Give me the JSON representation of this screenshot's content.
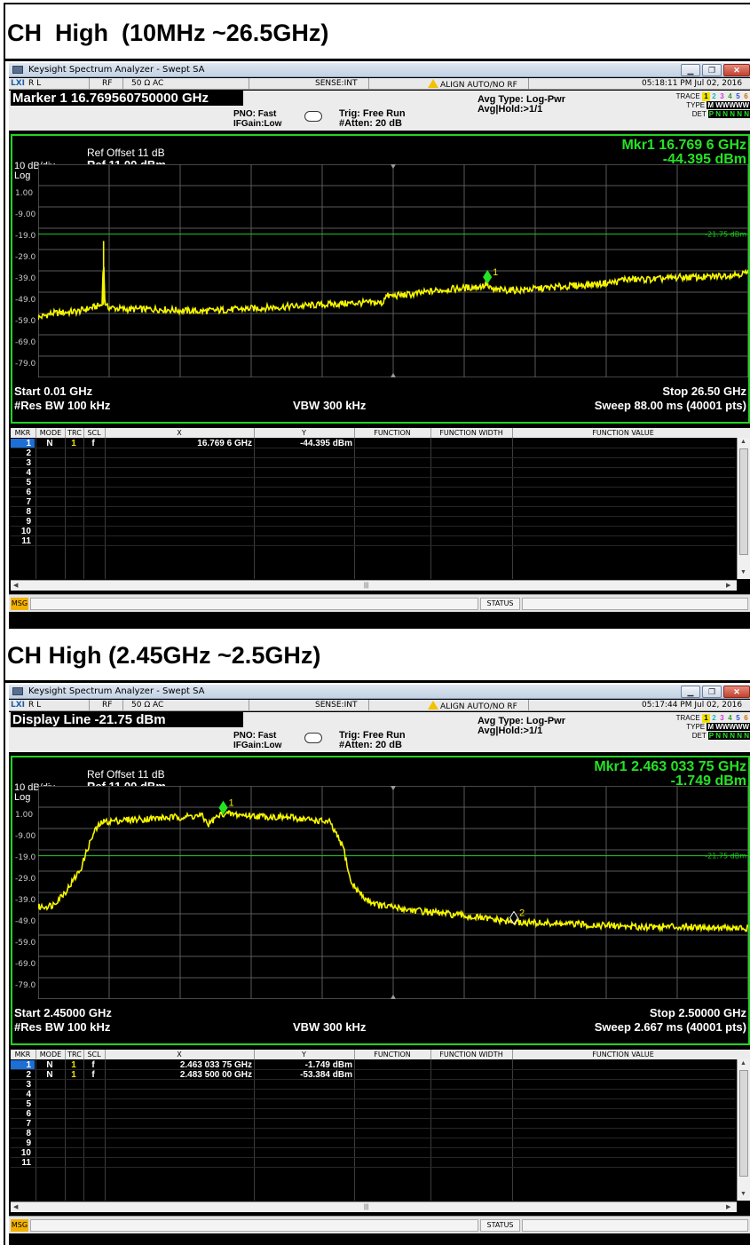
{
  "sections": [
    {
      "heading": "CH  High  (10MHz ~26.5GHz)",
      "window_title": "Keysight Spectrum Analyzer - Swept SA",
      "status": {
        "rl": "R L",
        "rf": "RF",
        "imp": "50 Ω  AC",
        "sense": "SENSE:INT",
        "align": "ALIGN AUTO/NO RF",
        "datetime": "05:18:11 PM Jul 02, 2016"
      },
      "active_function": "Marker 1  16.769560750000 GHz",
      "pno": "PNO: Fast",
      "ifgain": "IFGain:Low",
      "trig": "Trig: Free Run",
      "atten": "#Atten: 20 dB",
      "avg_type": "Avg Type: Log-Pwr",
      "avg_hold": "Avg|Hold:>1/1",
      "trace_labels": {
        "trace": "TRACE",
        "type": "TYPE",
        "det": "DET",
        "nums": [
          "1",
          "2",
          "3",
          "4",
          "5",
          "6"
        ],
        "type_val": "M WWWWW",
        "det_val": "P N N N N N"
      },
      "marker_readout_freq": "Mkr1 16.769 6 GHz",
      "marker_readout_amp": "-44.395 dBm",
      "ref_offset": "Ref Offset 11 dB",
      "scale": "10 dB/div",
      "ref_level": "Ref 11.00 dBm",
      "log": "Log",
      "y_ticks": [
        "1.00",
        "-9.00",
        "-19.0",
        "-29.0",
        "-39.0",
        "-49.0",
        "-59.0",
        "-69.0",
        "-79.0"
      ],
      "display_line_label": "-21.75 dBm",
      "start": "Start 0.01 GHz",
      "stop": "Stop 26.50 GHz",
      "rbw": "#Res BW 100 kHz",
      "vbw": "VBW 300 kHz",
      "sweep": "Sweep  88.00 ms (40001 pts)",
      "table_headers": [
        "MKR",
        "MODE",
        "TRC",
        "SCL",
        "X",
        "Y",
        "FUNCTION",
        "FUNCTION WIDTH",
        "FUNCTION VALUE"
      ],
      "marker_rows": [
        {
          "mkr": "1",
          "mode": "N",
          "trc": "1",
          "scl": "f",
          "x": "16.769 6 GHz",
          "y": "-44.395 dBm"
        },
        {
          "mkr": "2",
          "mode": "",
          "trc": "",
          "scl": "",
          "x": "",
          "y": ""
        },
        {
          "mkr": "3",
          "mode": "",
          "trc": "",
          "scl": "",
          "x": "",
          "y": ""
        },
        {
          "mkr": "4",
          "mode": "",
          "trc": "",
          "scl": "",
          "x": "",
          "y": ""
        },
        {
          "mkr": "5",
          "mode": "",
          "trc": "",
          "scl": "",
          "x": "",
          "y": ""
        },
        {
          "mkr": "6",
          "mode": "",
          "trc": "",
          "scl": "",
          "x": "",
          "y": ""
        },
        {
          "mkr": "7",
          "mode": "",
          "trc": "",
          "scl": "",
          "x": "",
          "y": ""
        },
        {
          "mkr": "8",
          "mode": "",
          "trc": "",
          "scl": "",
          "x": "",
          "y": ""
        },
        {
          "mkr": "9",
          "mode": "",
          "trc": "",
          "scl": "",
          "x": "",
          "y": ""
        },
        {
          "mkr": "10",
          "mode": "",
          "trc": "",
          "scl": "",
          "x": "",
          "y": ""
        },
        {
          "mkr": "11",
          "mode": "",
          "trc": "",
          "scl": "",
          "x": "",
          "y": ""
        }
      ],
      "msg": "MSG",
      "status_label": "STATUS",
      "chart_data": {
        "type": "line",
        "x_range_ghz": [
          0.01,
          26.5
        ],
        "ylim": [
          -89,
          11
        ],
        "display_line_dbm": -21.75,
        "trace_color": "#f5f500",
        "series": [
          {
            "x": [
              0.01,
              0.5,
              1.5,
              2.4,
              2.45,
              2.47,
              2.55,
              3.2,
              4.5,
              6.0,
              7.5,
              9.0,
              10.5,
              12.0,
              12.9,
              12.92,
              14.0,
              15.0,
              16.0,
              16.7,
              16.77,
              16.8,
              17.0,
              18.0,
              19.0,
              20.0,
              21.0,
              21.7,
              21.72,
              23.0,
              24.0,
              25.0,
              26.5
            ],
            "y": [
              -61,
              -59,
              -58,
              -55,
              -25,
              -50,
              -56,
              -57,
              -57,
              -58,
              -57,
              -56,
              -55,
              -54,
              -54,
              -51,
              -50,
              -48,
              -47,
              -46,
              -44,
              -47,
              -48,
              -48,
              -47,
              -46,
              -45,
              -44,
              -43,
              -43,
              -42,
              -42,
              -40
            ]
          }
        ],
        "markers": [
          {
            "label": "1",
            "x": 16.77,
            "y": -44.395
          }
        ]
      }
    },
    {
      "heading": "CH High (2.45GHz ~2.5GHz)",
      "window_title": "Keysight Spectrum Analyzer - Swept SA",
      "status": {
        "rl": "R L",
        "rf": "RF",
        "imp": "50 Ω  AC",
        "sense": "SENSE:INT",
        "align": "ALIGN AUTO/NO RF",
        "datetime": "05:17:44 PM Jul 02, 2016"
      },
      "active_function": "Display Line  -21.75 dBm",
      "pno": "PNO: Fast",
      "ifgain": "IFGain:Low",
      "trig": "Trig: Free Run",
      "atten": "#Atten: 20 dB",
      "avg_type": "Avg Type: Log-Pwr",
      "avg_hold": "Avg|Hold:>1/1",
      "trace_labels": {
        "trace": "TRACE",
        "type": "TYPE",
        "det": "DET",
        "nums": [
          "1",
          "2",
          "3",
          "4",
          "5",
          "6"
        ],
        "type_val": "M WWWWW",
        "det_val": "P N N N N N"
      },
      "marker_readout_freq": "Mkr1 2.463 033 75 GHz",
      "marker_readout_amp": "-1.749 dBm",
      "ref_offset": "Ref Offset 11 dB",
      "scale": "10 dB/div",
      "ref_level": "Ref 11.00 dBm",
      "log": "Log",
      "y_ticks": [
        "1.00",
        "-9.00",
        "-19.0",
        "-29.0",
        "-39.0",
        "-49.0",
        "-59.0",
        "-69.0",
        "-79.0"
      ],
      "display_line_label": "-21.75 dBm",
      "start": "Start 2.45000 GHz",
      "stop": "Stop 2.50000 GHz",
      "rbw": "#Res BW 100 kHz",
      "vbw": "VBW 300 kHz",
      "sweep": "Sweep  2.667 ms (40001 pts)",
      "table_headers": [
        "MKR",
        "MODE",
        "TRC",
        "SCL",
        "X",
        "Y",
        "FUNCTION",
        "FUNCTION WIDTH",
        "FUNCTION VALUE"
      ],
      "marker_rows": [
        {
          "mkr": "1",
          "mode": "N",
          "trc": "1",
          "scl": "f",
          "x": "2.463 033 75 GHz",
          "y": "-1.749 dBm"
        },
        {
          "mkr": "2",
          "mode": "N",
          "trc": "1",
          "scl": "f",
          "x": "2.483 500 00 GHz",
          "y": "-53.384 dBm"
        },
        {
          "mkr": "3",
          "mode": "",
          "trc": "",
          "scl": "",
          "x": "",
          "y": ""
        },
        {
          "mkr": "4",
          "mode": "",
          "trc": "",
          "scl": "",
          "x": "",
          "y": ""
        },
        {
          "mkr": "5",
          "mode": "",
          "trc": "",
          "scl": "",
          "x": "",
          "y": ""
        },
        {
          "mkr": "6",
          "mode": "",
          "trc": "",
          "scl": "",
          "x": "",
          "y": ""
        },
        {
          "mkr": "7",
          "mode": "",
          "trc": "",
          "scl": "",
          "x": "",
          "y": ""
        },
        {
          "mkr": "8",
          "mode": "",
          "trc": "",
          "scl": "",
          "x": "",
          "y": ""
        },
        {
          "mkr": "9",
          "mode": "",
          "trc": "",
          "scl": "",
          "x": "",
          "y": ""
        },
        {
          "mkr": "10",
          "mode": "",
          "trc": "",
          "scl": "",
          "x": "",
          "y": ""
        },
        {
          "mkr": "11",
          "mode": "",
          "trc": "",
          "scl": "",
          "x": "",
          "y": ""
        }
      ],
      "msg": "MSG",
      "status_label": "STATUS",
      "chart_data": {
        "type": "line",
        "x_range_ghz": [
          2.45,
          2.5
        ],
        "ylim": [
          -89,
          11
        ],
        "display_line_dbm": -21.75,
        "trace_color": "#f5f500",
        "series": [
          {
            "x": [
              2.45,
              2.451,
              2.452,
              2.453,
              2.4535,
              2.454,
              2.4545,
              2.456,
              2.459,
              2.4615,
              2.462,
              2.4625,
              2.463,
              2.465,
              2.468,
              2.4705,
              2.4715,
              2.472,
              2.473,
              2.474,
              2.476,
              2.48,
              2.4835,
              2.488,
              2.492,
              2.496,
              2.5
            ],
            "y": [
              -46,
              -45,
              -38,
              -28,
              -18,
              -10,
              -6,
              -5,
              -4,
              -3,
              -7,
              -4,
              -2,
              -3,
              -4,
              -6,
              -18,
              -34,
              -42,
              -45,
              -47,
              -50,
              -53,
              -54,
              -55,
              -55,
              -56
            ]
          }
        ],
        "markers": [
          {
            "label": "1",
            "x": 2.46303375,
            "y": -1.749
          },
          {
            "label": "2",
            "x": 2.4835,
            "y": -53.384
          }
        ]
      }
    }
  ]
}
